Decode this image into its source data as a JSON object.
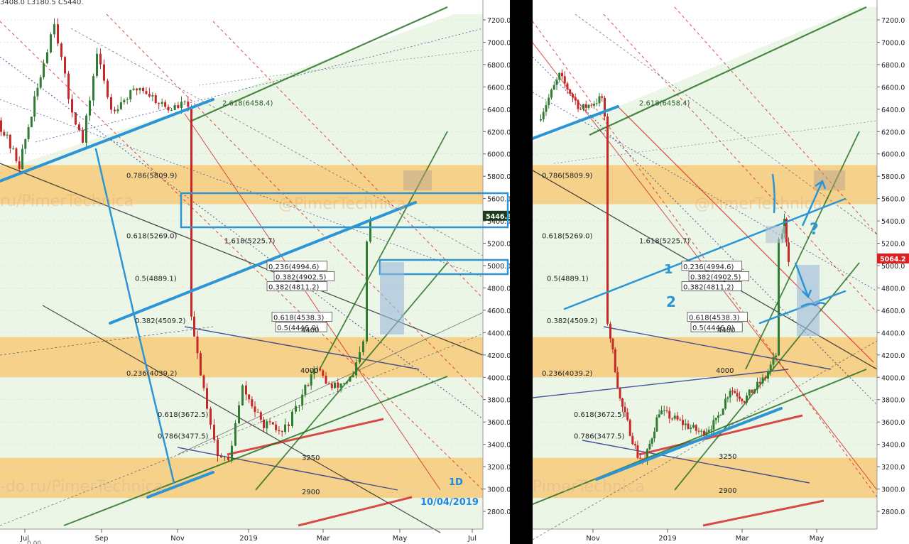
{
  "left_chart": {
    "top_partial_text": "3408.0  L3180.5  C5440.",
    "timeframe": "1D",
    "date": "10/04/2019",
    "price_tag": "5446.3",
    "x_labels": [
      "Jul",
      "Sep",
      "Nov",
      "2019",
      "Mar",
      "May",
      "Jul"
    ],
    "bottom_partial_text": "0.00",
    "watermark_mid": "ru/PimerTechnica",
    "watermark_mid2": "@PimerTechnica",
    "watermark_low": "-do.ru/PimerTechnica"
  },
  "right_chart": {
    "price_tag": "5064.2",
    "x_labels": [
      "Nov",
      "2019",
      "Mar",
      "May"
    ],
    "watermark_mid": "@PimerTechnica",
    "watermark_low": "PimerTechnica",
    "annotations": [
      "1",
      "2",
      "?"
    ]
  },
  "chart_data": [
    {
      "type": "line",
      "panel": "left",
      "y_ticks": [
        7200,
        7000,
        6800,
        6600,
        6400,
        6200,
        6000,
        5800,
        5600,
        5400,
        5200,
        5000,
        4800,
        4600,
        4400,
        4200,
        4000,
        3800,
        3600,
        3400,
        3200,
        3000,
        2800
      ],
      "ylim": [
        2680,
        7320
      ],
      "fib_levels": [
        {
          "label": "2.618(6458.4)",
          "value": 6458.4
        },
        {
          "label": "0.786(5809.9)",
          "value": 5809.9
        },
        {
          "label": "0.618(5269.0)",
          "value": 5269.0
        },
        {
          "label": "1.618(5225.7)",
          "value": 5225.7
        },
        {
          "label": "0.236(4994.6)",
          "value": 4994.6
        },
        {
          "label": "0.382(4902.5)",
          "value": 4902.5
        },
        {
          "label": "0.5(4889.1)",
          "value": 4889.1
        },
        {
          "label": "0.382(4811.2)",
          "value": 4811.2
        },
        {
          "label": "0.618(4538.3)",
          "value": 4538.3
        },
        {
          "label": "0.382(4509.2)",
          "value": 4509.2
        },
        {
          "label": "0.5(4446.0)",
          "value": 4446.0
        },
        {
          "label": "0.236(4039.2)",
          "value": 4039.2
        },
        {
          "label": "0.618(3672.5)",
          "value": 3672.5
        },
        {
          "label": "0.786(3477.5)",
          "value": 3477.5
        }
      ],
      "level_labels": [
        "4400",
        "4000",
        "3250",
        "2900"
      ],
      "support_zones": [
        [
          5550,
          5900
        ],
        [
          4000,
          4360
        ],
        [
          2920,
          3280
        ]
      ]
    },
    {
      "type": "line",
      "panel": "right",
      "y_ticks": [
        7200,
        7000,
        6800,
        6600,
        6400,
        6200,
        6000,
        5800,
        5600,
        5400,
        5200,
        5000,
        4800,
        4600,
        4400,
        4200,
        4000,
        3800,
        3600,
        3400,
        3200,
        3000,
        2800
      ],
      "ylim": [
        2680,
        7320
      ],
      "fib_levels": [
        {
          "label": "2.618(6458.4)",
          "value": 6458.4
        },
        {
          "label": "0.786(5809.9)",
          "value": 5809.9
        },
        {
          "label": "0.618(5269.0)",
          "value": 5269.0
        },
        {
          "label": "1.618(5225.7)",
          "value": 5225.7
        },
        {
          "label": "0.236(4994.6)",
          "value": 4994.6
        },
        {
          "label": "0.382(4902.5)",
          "value": 4902.5
        },
        {
          "label": "0.5(4889.1)",
          "value": 4889.1
        },
        {
          "label": "0.382(4811.2)",
          "value": 4811.2
        },
        {
          "label": "0.618(4538.3)",
          "value": 4538.3
        },
        {
          "label": "0.382(4509.2)",
          "value": 4509.2
        },
        {
          "label": "0.5(4446.0)",
          "value": 4446.0
        },
        {
          "label": "0.236(4039.2)",
          "value": 4039.2
        },
        {
          "label": "0.618(3672.5)",
          "value": 3672.5
        },
        {
          "label": "0.786(3477.5)",
          "value": 3477.5
        }
      ],
      "level_labels": [
        "4400",
        "4000",
        "3250",
        "2900"
      ],
      "support_zones": [
        [
          5550,
          5900
        ],
        [
          4000,
          4360
        ],
        [
          2920,
          3280
        ]
      ]
    }
  ],
  "colors": {
    "zone": "#f9c46b",
    "green_band": "#dcefd4",
    "blue_line": "#2b95d6",
    "dark_green": "#1f6b1a",
    "red": "#d42020",
    "navy": "#1c2d8c",
    "candle_up": "#2e7d32",
    "candle_down": "#c62828",
    "price_tag_left": "#1b3d1b",
    "price_tag_right": "#e02020"
  }
}
